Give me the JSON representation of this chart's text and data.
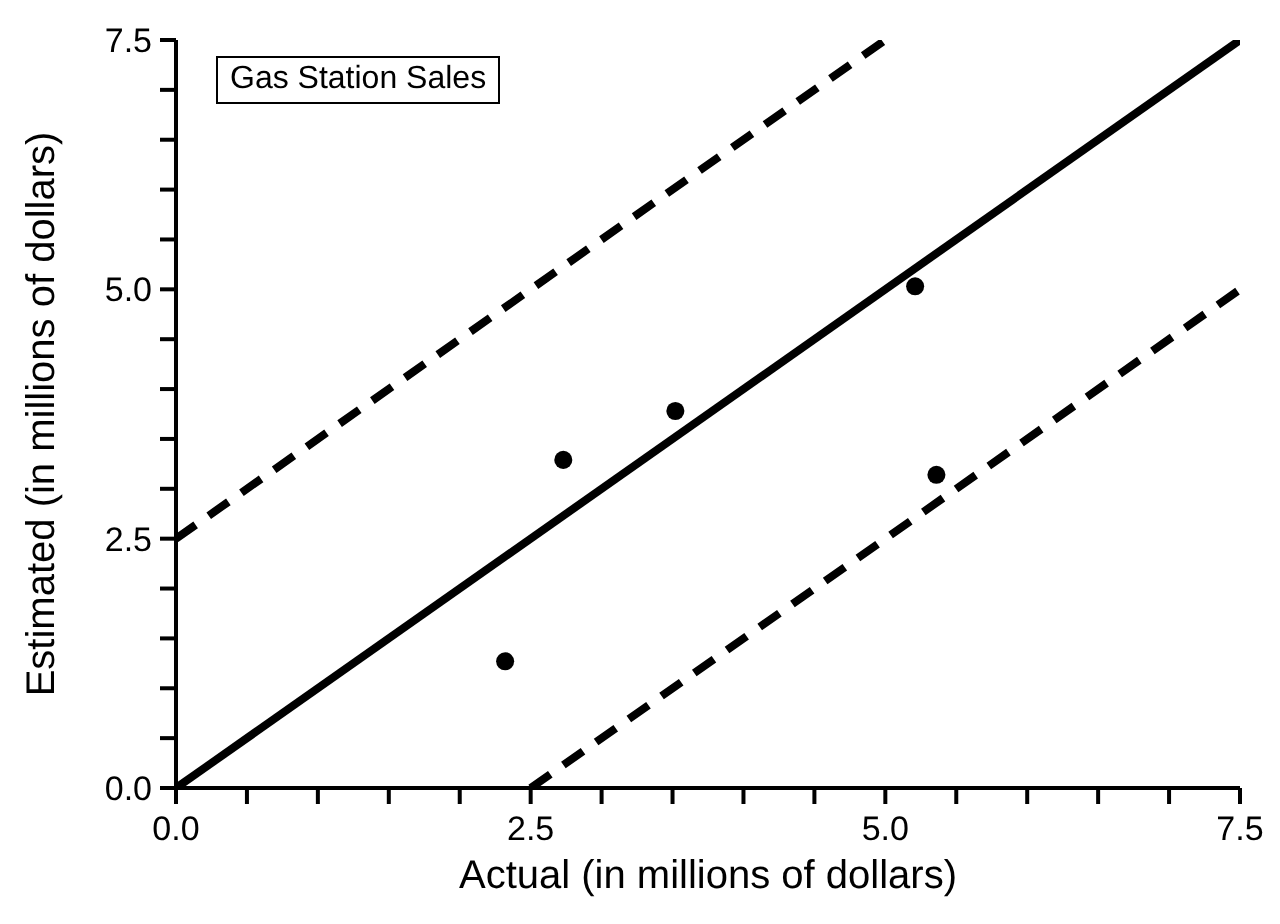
{
  "chart_data": {
    "type": "scatter",
    "title": "Gas Station Sales",
    "xlabel": "Actual (in millions of dollars)",
    "ylabel": "Estimated (in millions of dollars)",
    "xlim": [
      0,
      7.5
    ],
    "ylim": [
      0,
      7.5
    ],
    "xticks": [
      {
        "value": 0,
        "label": "0.0"
      },
      {
        "value": 0.5,
        "label": null
      },
      {
        "value": 1,
        "label": null
      },
      {
        "value": 1.5,
        "label": null
      },
      {
        "value": 2,
        "label": null
      },
      {
        "value": 2.5,
        "label": "2.5"
      },
      {
        "value": 3,
        "label": null
      },
      {
        "value": 3.5,
        "label": null
      },
      {
        "value": 4,
        "label": null
      },
      {
        "value": 4.5,
        "label": null
      },
      {
        "value": 5,
        "label": "5.0"
      },
      {
        "value": 5.5,
        "label": null
      },
      {
        "value": 6,
        "label": null
      },
      {
        "value": 6.5,
        "label": null
      },
      {
        "value": 7,
        "label": null
      },
      {
        "value": 7.5,
        "label": "7.5"
      }
    ],
    "yticks": [
      {
        "value": 0,
        "label": "0.0"
      },
      {
        "value": 0.5,
        "label": null
      },
      {
        "value": 1,
        "label": null
      },
      {
        "value": 1.5,
        "label": null
      },
      {
        "value": 2,
        "label": null
      },
      {
        "value": 2.5,
        "label": "2.5"
      },
      {
        "value": 3,
        "label": null
      },
      {
        "value": 3.5,
        "label": null
      },
      {
        "value": 4,
        "label": null
      },
      {
        "value": 4.5,
        "label": null
      },
      {
        "value": 5,
        "label": "5.0"
      },
      {
        "value": 5.5,
        "label": null
      },
      {
        "value": 6,
        "label": null
      },
      {
        "value": 6.5,
        "label": null
      },
      {
        "value": 7,
        "label": null
      },
      {
        "value": 7.5,
        "label": "7.5"
      }
    ],
    "grid": false,
    "legend": false,
    "marker": "circle",
    "series": [
      {
        "color": "#000000",
        "x": [
          2.32,
          2.73,
          3.52,
          5.21,
          5.36
        ],
        "values": [
          1.27,
          3.29,
          3.78,
          5.03,
          3.14
        ]
      },
      {
        "type": "line",
        "color": "#000000",
        "line_style": "solid",
        "marker": "none",
        "x": [
          0,
          7.5
        ],
        "values": [
          0,
          7.5
        ]
      },
      {
        "type": "line",
        "color": "#000000",
        "line_style": "dashed",
        "marker": "none",
        "x": [
          0,
          5
        ],
        "values": [
          2.5,
          7.5
        ]
      },
      {
        "type": "line",
        "color": "#000000",
        "line_style": "dashed",
        "marker": "none",
        "x": [
          2.5,
          7.5
        ],
        "values": [
          0,
          5
        ]
      }
    ]
  }
}
